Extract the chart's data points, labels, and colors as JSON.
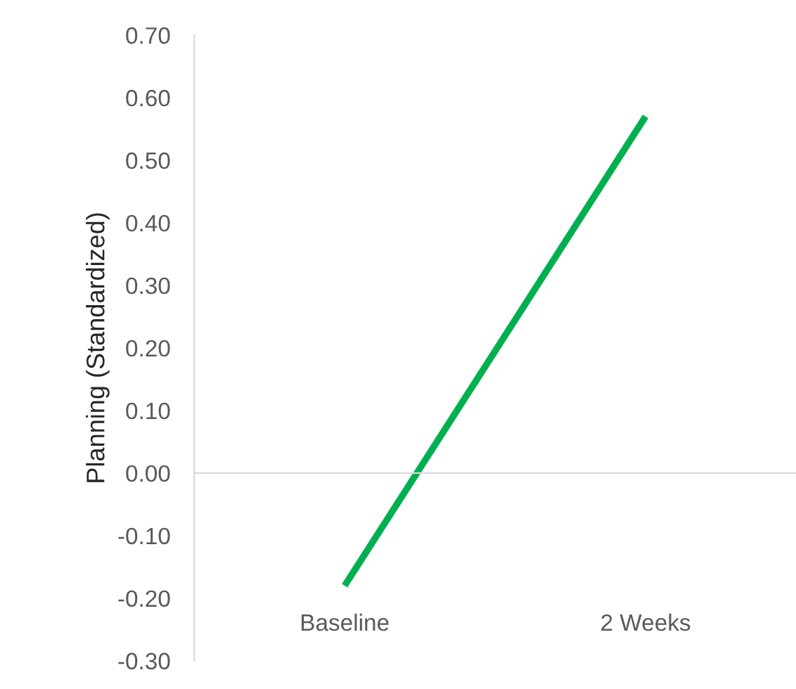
{
  "chart_data": {
    "type": "line",
    "ylabel": "Planning (Standardized)",
    "categories": [
      "Baseline",
      "2 Weeks"
    ],
    "series": [
      {
        "color": "#00b050",
        "values": [
          -0.18,
          0.57
        ]
      }
    ],
    "ylim": [
      -0.3,
      0.7
    ],
    "yticks": [
      {
        "value": -0.3,
        "label": "-0.30"
      },
      {
        "value": -0.2,
        "label": "-0.20"
      },
      {
        "value": -0.1,
        "label": "-0.10"
      },
      {
        "value": 0,
        "label": "0.00"
      },
      {
        "value": 0.1,
        "label": "0.10"
      },
      {
        "value": 0.2,
        "label": "0.20"
      },
      {
        "value": 0.3,
        "label": "0.30"
      },
      {
        "value": 0.4,
        "label": "0.40"
      },
      {
        "value": 0.5,
        "label": "0.50"
      },
      {
        "value": 0.6,
        "label": "0.60"
      },
      {
        "value": 0.7,
        "label": "0.70"
      }
    ],
    "marker": "none",
    "line_style": "solid"
  }
}
